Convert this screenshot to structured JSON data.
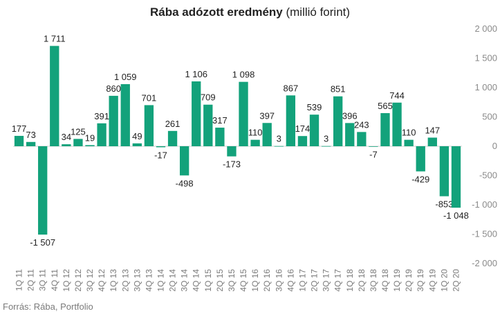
{
  "title_bold": "Rába adózott eredmény",
  "title_rest": "(millió forint)",
  "source": "Forrás: Rába, Portfolio",
  "chart_data": {
    "type": "bar",
    "title": "Rába adózott eredmény (millió forint)",
    "xlabel": "",
    "ylabel": "",
    "ylim": [
      -2000,
      2000
    ],
    "yticks": [
      2000,
      1500,
      1000,
      500,
      0,
      -500,
      -1000,
      -1500,
      -2000
    ],
    "ytick_labels": [
      "2 000",
      "1 500",
      "1 000",
      "500",
      "0",
      "-500",
      "-1 000",
      "-1 500",
      "-2 000"
    ],
    "bar_color": "#13a27b",
    "categories": [
      "1Q 11",
      "2Q 11",
      "3Q 11",
      "4Q 11",
      "1Q 12",
      "2Q 12",
      "3Q 12",
      "4Q 12",
      "1Q 13",
      "2Q 13",
      "3Q 13",
      "4Q 13",
      "1Q 14",
      "2Q 14",
      "3Q 14",
      "4Q 14",
      "1Q 15",
      "2Q 15",
      "3Q 15",
      "4Q 15",
      "1Q 16",
      "2Q 16",
      "3Q 16",
      "4Q 16",
      "1Q 17",
      "2Q 17",
      "3Q 17",
      "4Q 17",
      "1Q 18",
      "2Q 18",
      "3Q 18",
      "4Q 18",
      "1Q 19",
      "2Q 19",
      "3Q 19",
      "4Q 19",
      "1Q 20",
      "2Q 20"
    ],
    "values": [
      177,
      73,
      -1507,
      1711,
      34,
      125,
      19,
      391,
      860,
      1059,
      49,
      701,
      -17,
      261,
      -498,
      1106,
      709,
      317,
      -173,
      1098,
      110,
      397,
      3,
      867,
      174,
      539,
      3,
      851,
      396,
      243,
      -7,
      565,
      744,
      110,
      -429,
      147,
      -853,
      -1048
    ],
    "value_labels": [
      "177",
      "73",
      "-1 507",
      "1 711",
      "34",
      "125",
      "19",
      "391",
      "860",
      "1 059",
      "49",
      "701",
      "-17",
      "261",
      "-498",
      "1 106",
      "709",
      "317",
      "-173",
      "1 098",
      "110",
      "397",
      "3",
      "867",
      "174",
      "539",
      "3",
      "851",
      "396",
      "243",
      "-7",
      "565",
      "744",
      "110",
      "-429",
      "147",
      "-853",
      "-1 048"
    ]
  }
}
